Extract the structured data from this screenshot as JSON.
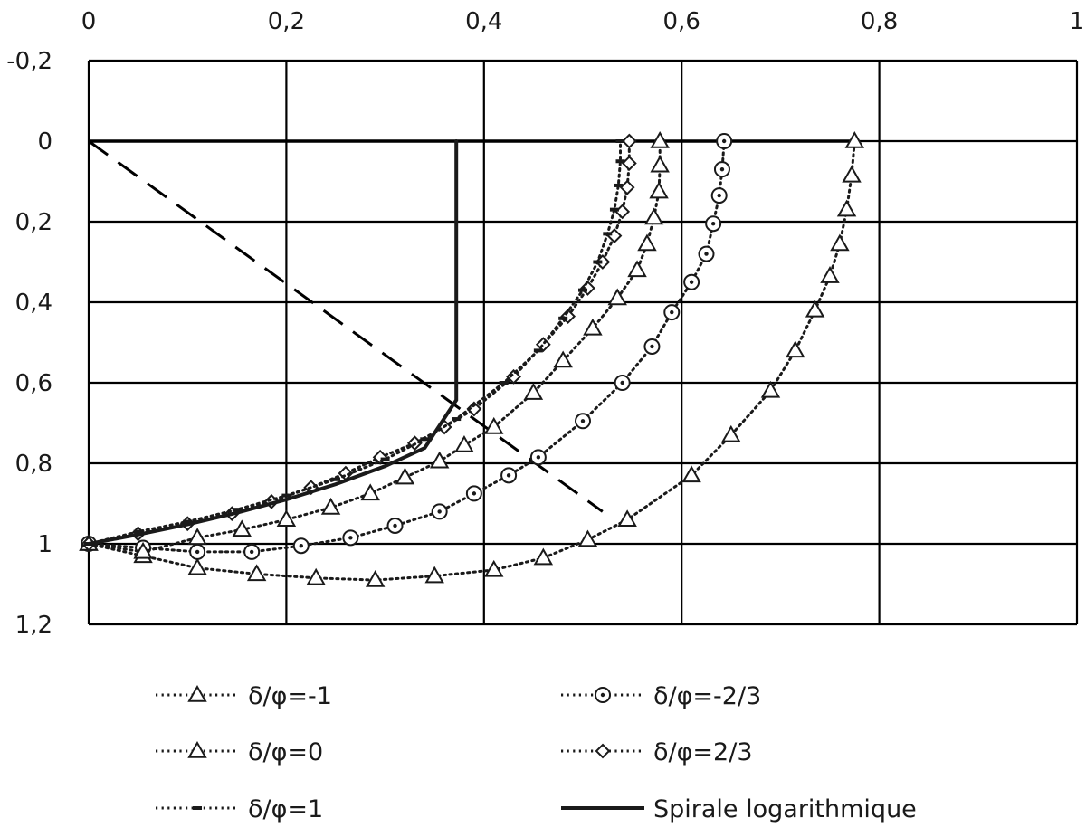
{
  "chart_data": {
    "type": "scatter",
    "title": "",
    "xlabel": "",
    "ylabel": "",
    "xlim": [
      0,
      1
    ],
    "ylim": [
      -0.2,
      1.2
    ],
    "y_axis_inverted": true,
    "x_axis_position": "top",
    "grid": true,
    "legend_position": "bottom",
    "x_ticks": [
      "0",
      "0,2",
      "0,4",
      "0,6",
      "0,8",
      "1"
    ],
    "x_tick_values": [
      0,
      0.2,
      0.4,
      0.6,
      0.8,
      1
    ],
    "y_ticks": [
      "-0,2",
      "0",
      "0,2",
      "0,4",
      "0,6",
      "0,8",
      "1",
      "1,2"
    ],
    "y_tick_values": [
      -0.2,
      0,
      0.2,
      0.4,
      0.6,
      0.8,
      1,
      1.2
    ],
    "series": [
      {
        "name": "δ/φ=-1",
        "style": "dotted",
        "marker": "triangle",
        "points": [
          [
            0,
            1
          ],
          [
            0.055,
            1.03
          ],
          [
            0.11,
            1.06
          ],
          [
            0.17,
            1.075
          ],
          [
            0.23,
            1.085
          ],
          [
            0.29,
            1.09
          ],
          [
            0.35,
            1.08
          ],
          [
            0.41,
            1.065
          ],
          [
            0.46,
            1.035
          ],
          [
            0.505,
            0.99
          ],
          [
            0.545,
            0.94
          ],
          [
            0.61,
            0.83
          ],
          [
            0.65,
            0.73
          ],
          [
            0.69,
            0.62
          ],
          [
            0.715,
            0.52
          ],
          [
            0.735,
            0.42
          ],
          [
            0.75,
            0.335
          ],
          [
            0.76,
            0.255
          ],
          [
            0.767,
            0.17
          ],
          [
            0.772,
            0.085
          ],
          [
            0.775,
            0
          ]
        ]
      },
      {
        "name": "δ/φ=-2/3",
        "style": "dotted",
        "marker": "circle",
        "points": [
          [
            0,
            1
          ],
          [
            0.055,
            1.01
          ],
          [
            0.11,
            1.02
          ],
          [
            0.165,
            1.02
          ],
          [
            0.215,
            1.005
          ],
          [
            0.265,
            0.985
          ],
          [
            0.31,
            0.955
          ],
          [
            0.355,
            0.92
          ],
          [
            0.39,
            0.875
          ],
          [
            0.425,
            0.83
          ],
          [
            0.455,
            0.785
          ],
          [
            0.5,
            0.695
          ],
          [
            0.54,
            0.6
          ],
          [
            0.57,
            0.51
          ],
          [
            0.59,
            0.425
          ],
          [
            0.61,
            0.35
          ],
          [
            0.625,
            0.28
          ],
          [
            0.632,
            0.205
          ],
          [
            0.638,
            0.135
          ],
          [
            0.641,
            0.07
          ],
          [
            0.643,
            0
          ]
        ]
      },
      {
        "name": "δ/φ=0",
        "style": "dotted",
        "marker": "triangle",
        "points": [
          [
            0,
            1
          ],
          [
            0.055,
            1.02
          ],
          [
            0.11,
            0.985
          ],
          [
            0.155,
            0.965
          ],
          [
            0.2,
            0.94
          ],
          [
            0.245,
            0.91
          ],
          [
            0.285,
            0.875
          ],
          [
            0.32,
            0.835
          ],
          [
            0.355,
            0.795
          ],
          [
            0.38,
            0.755
          ],
          [
            0.41,
            0.71
          ],
          [
            0.45,
            0.625
          ],
          [
            0.48,
            0.545
          ],
          [
            0.51,
            0.465
          ],
          [
            0.535,
            0.39
          ],
          [
            0.555,
            0.32
          ],
          [
            0.565,
            0.255
          ],
          [
            0.572,
            0.19
          ],
          [
            0.577,
            0.125
          ],
          [
            0.578,
            0.06
          ],
          [
            0.578,
            0
          ]
        ]
      },
      {
        "name": "δ/φ=2/3",
        "style": "dotted",
        "marker": "diamond",
        "points": [
          [
            0,
            1
          ],
          [
            0.05,
            0.975
          ],
          [
            0.1,
            0.95
          ],
          [
            0.145,
            0.925
          ],
          [
            0.185,
            0.895
          ],
          [
            0.225,
            0.86
          ],
          [
            0.26,
            0.825
          ],
          [
            0.295,
            0.785
          ],
          [
            0.33,
            0.75
          ],
          [
            0.36,
            0.71
          ],
          [
            0.39,
            0.665
          ],
          [
            0.43,
            0.585
          ],
          [
            0.46,
            0.505
          ],
          [
            0.485,
            0.435
          ],
          [
            0.505,
            0.365
          ],
          [
            0.52,
            0.3
          ],
          [
            0.532,
            0.235
          ],
          [
            0.54,
            0.175
          ],
          [
            0.545,
            0.115
          ],
          [
            0.547,
            0.055
          ],
          [
            0.547,
            0
          ]
        ]
      },
      {
        "name": "δ/φ=1",
        "style": "dotted",
        "marker": "dash",
        "points": [
          [
            0,
            1
          ],
          [
            0.05,
            0.97
          ],
          [
            0.1,
            0.945
          ],
          [
            0.15,
            0.915
          ],
          [
            0.2,
            0.88
          ],
          [
            0.25,
            0.84
          ],
          [
            0.3,
            0.79
          ],
          [
            0.34,
            0.74
          ],
          [
            0.372,
            0.69
          ],
          [
            0.42,
            0.6
          ],
          [
            0.455,
            0.52
          ],
          [
            0.48,
            0.44
          ],
          [
            0.5,
            0.37
          ],
          [
            0.515,
            0.3
          ],
          [
            0.525,
            0.23
          ],
          [
            0.532,
            0.17
          ],
          [
            0.536,
            0.11
          ],
          [
            0.538,
            0.05
          ],
          [
            0.538,
            0
          ]
        ]
      },
      {
        "name": "Spirale logarithmique",
        "style": "solid",
        "marker": "none",
        "points": [
          [
            0,
            1
          ],
          [
            0.05,
            0.977
          ],
          [
            0.1,
            0.952
          ],
          [
            0.15,
            0.923
          ],
          [
            0.2,
            0.89
          ],
          [
            0.25,
            0.852
          ],
          [
            0.3,
            0.807
          ],
          [
            0.34,
            0.762
          ],
          [
            0.372,
            0.643
          ],
          [
            0.372,
            0
          ]
        ]
      }
    ],
    "extra_lines": [
      {
        "style": "solid",
        "points": [
          [
            0,
            0
          ],
          [
            0.775,
            0
          ]
        ]
      },
      {
        "style": "dashed",
        "points": [
          [
            0,
            0
          ],
          [
            0.52,
            0.92
          ]
        ]
      }
    ]
  }
}
